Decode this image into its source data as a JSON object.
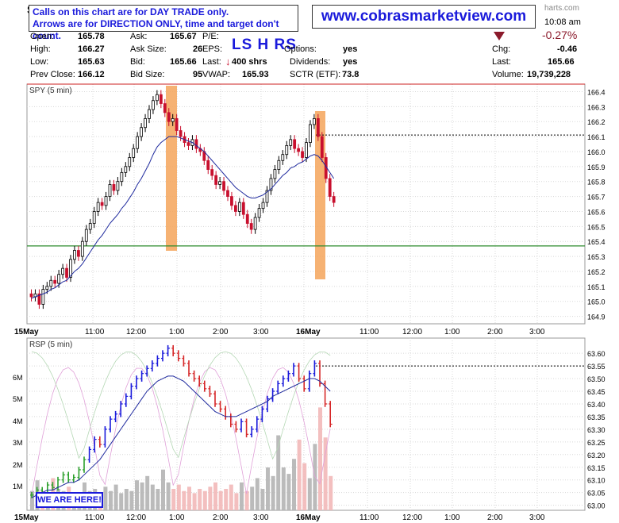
{
  "header": {
    "symbol_letter": "S",
    "notice_line1": "Calls on this chart are for DAY TRADE only.",
    "notice_line2": "Arrows are for DIRECTION ONLY, time and target don't count.",
    "website": "www.cobrasmarketview.com",
    "brand_fragment": "harts.com",
    "time": "10:08 am",
    "change_pct": "-0.27%",
    "lshrs": "LS H RS",
    "row1": {
      "open_label": "Open:",
      "open": "165.78",
      "ask_label": "Ask:",
      "ask": "165.67",
      "pe_label": "P/E:",
      "pe": ""
    },
    "row2": {
      "high_label": "High:",
      "high": "166.27",
      "asksize_label": "Ask Size:",
      "asksize": "26",
      "eps_label": "EPS:",
      "options_label": "Options:",
      "options": "yes",
      "chg_label": "Chg:",
      "chg": "-0.46"
    },
    "row3": {
      "low_label": "Low:",
      "low": "165.63",
      "bid_label": "Bid:",
      "bid": "165.66",
      "last_label": "Last:",
      "last_size": "400 shrs",
      "dividends_label": "Dividends:",
      "dividends": "yes",
      "last2_label": "Last:",
      "last2": "165.66"
    },
    "row4": {
      "prev_label": "Prev Close:",
      "prev": "166.12",
      "bidsize_label": "Bid Size:",
      "bidsize": "95",
      "vwap_label": "VWAP:",
      "vwap": "165.93",
      "sctr_label": "SCTR (ETF):",
      "sctr": "73.8",
      "volume_label": "Volume:",
      "volume": "19,739,228"
    }
  },
  "overlay": {
    "we_are_here": "WE ARE HERE!"
  },
  "colors": {
    "up": "#000000",
    "down": "#c8102e",
    "ma": "#1f2a9e",
    "highlight": "#f5a55a",
    "red_line": "#cc2222",
    "green_line": "#2e8b2e",
    "rsp_up": "#2ca02c",
    "rsp_down": "#d62728",
    "rsp_blue": "#1a1adb"
  },
  "chart_data": [
    {
      "type": "candlestick",
      "title": "SPY (5 min)",
      "ylim": [
        164.85,
        166.45
      ],
      "yticks": [
        "166.4",
        "166.3",
        "166.2",
        "166.1",
        "166.0",
        "165.9",
        "165.8",
        "165.7",
        "165.6",
        "165.5",
        "165.4",
        "165.3",
        "165.2",
        "165.1",
        "165.0",
        "164.9"
      ],
      "xticks": [
        "15May",
        "11:00",
        "12:00",
        "1:00",
        "2:00",
        "3:00",
        "16May",
        "11:00",
        "12:00",
        "1:00",
        "2:00",
        "3:00"
      ],
      "reference_lines": {
        "resistance": 166.45,
        "support": 165.37,
        "dashed": 166.11
      },
      "close": [
        165.03,
        165.05,
        164.98,
        165.08,
        165.1,
        165.14,
        165.12,
        165.18,
        165.22,
        165.16,
        165.28,
        165.34,
        165.3,
        165.4,
        165.48,
        165.52,
        165.6,
        165.66,
        165.64,
        165.7,
        165.78,
        165.74,
        165.8,
        165.86,
        165.9,
        165.96,
        166.02,
        166.1,
        166.16,
        166.22,
        166.28,
        166.34,
        166.38,
        166.32,
        166.26,
        166.2,
        166.22,
        166.14,
        166.1,
        166.06,
        166.04,
        166.08,
        166.02,
        166.0,
        165.94,
        165.88,
        165.84,
        165.78,
        165.8,
        165.74,
        165.7,
        165.64,
        165.6,
        165.66,
        165.58,
        165.52,
        165.48,
        165.56,
        165.62,
        165.66,
        165.74,
        165.82,
        165.88,
        165.94,
        165.98,
        166.04,
        166.08,
        166.02,
        166.0,
        165.96,
        166.06,
        166.18,
        166.22,
        166.1,
        165.96,
        165.82,
        165.7,
        165.66
      ],
      "series": [
        {
          "name": "Moving average",
          "values": [
            165.02,
            165.03,
            165.04,
            165.05,
            165.06,
            165.08,
            165.09,
            165.11,
            165.13,
            165.14,
            165.17,
            165.2,
            165.22,
            165.25,
            165.29,
            165.33,
            165.37,
            165.41,
            165.44,
            165.48,
            165.52,
            165.55,
            165.58,
            165.62,
            165.65,
            165.69,
            165.73,
            165.78,
            165.82,
            165.87,
            165.92,
            165.98,
            166.03,
            166.06,
            166.08,
            166.1,
            166.1,
            166.1,
            166.09,
            166.08,
            166.07,
            166.06,
            166.04,
            166.02,
            166.0,
            165.97,
            165.94,
            165.91,
            165.88,
            165.85,
            165.82,
            165.79,
            165.76,
            165.74,
            165.72,
            165.7,
            165.69,
            165.69,
            165.7,
            165.71,
            165.73,
            165.75,
            165.78,
            165.81,
            165.84,
            165.86,
            165.89,
            165.9,
            165.92,
            165.93,
            165.95,
            165.97,
            165.98,
            165.97,
            165.94,
            165.9,
            165.86,
            165.82
          ]
        }
      ]
    },
    {
      "type": "bar",
      "title": "RSP (5 min)",
      "ylim": [
        62.98,
        63.66
      ],
      "yticks": [
        "63.60",
        "63.55",
        "63.50",
        "63.45",
        "63.40",
        "63.35",
        "63.30",
        "63.25",
        "63.20",
        "63.15",
        "63.10",
        "63.05",
        "63.00"
      ],
      "volume_ticks": [
        "6M",
        "5M",
        "4M",
        "3M",
        "2M",
        "1M"
      ],
      "xticks": [
        "15May",
        "11:00",
        "12:00",
        "1:00",
        "2:00",
        "3:00",
        "16May",
        "11:00",
        "12:00",
        "1:00",
        "2:00",
        "3:00"
      ],
      "reference_lines": {
        "dashed": 63.55
      },
      "close": [
        63.04,
        63.06,
        63.05,
        63.08,
        63.07,
        63.1,
        63.12,
        63.1,
        63.11,
        63.14,
        63.18,
        63.22,
        63.26,
        63.24,
        63.3,
        63.34,
        63.36,
        63.4,
        63.43,
        63.47,
        63.5,
        63.52,
        63.54,
        63.56,
        63.58,
        63.6,
        63.62,
        63.6,
        63.58,
        63.56,
        63.52,
        63.5,
        63.48,
        63.46,
        63.44,
        63.4,
        63.38,
        63.35,
        63.32,
        63.3,
        63.33,
        63.28,
        63.3,
        63.34,
        63.38,
        63.42,
        63.45,
        63.48,
        63.5,
        63.52,
        63.55,
        63.5,
        63.46,
        63.52,
        63.56,
        63.48,
        63.4,
        63.32
      ],
      "series": [
        {
          "name": "Moving average",
          "values": [
            63.03,
            63.04,
            63.05,
            63.06,
            63.06,
            63.07,
            63.08,
            63.09,
            63.09,
            63.1,
            63.12,
            63.14,
            63.16,
            63.18,
            63.21,
            63.24,
            63.27,
            63.3,
            63.33,
            63.36,
            63.39,
            63.42,
            63.45,
            63.47,
            63.49,
            63.5,
            63.51,
            63.51,
            63.5,
            63.49,
            63.47,
            63.45,
            63.43,
            63.41,
            63.39,
            63.37,
            63.36,
            63.35,
            63.35,
            63.35,
            63.36,
            63.37,
            63.38,
            63.39,
            63.4,
            63.41,
            63.43,
            63.44,
            63.45,
            63.46,
            63.47,
            63.48,
            63.49,
            63.5,
            63.5,
            63.49,
            63.47,
            63.45
          ]
        },
        {
          "name": "Volume",
          "values": [
            0.9,
            1.4,
            0.9,
            0.7,
            1.5,
            1.0,
            0.9,
            1.1,
            0.8,
            0.7,
            1.3,
            0.9,
            1.0,
            0.8,
            1.1,
            0.9,
            1.2,
            0.8,
            1.0,
            0.9,
            1.4,
            1.3,
            1.6,
            1.2,
            1.0,
            1.9,
            1.3,
            1.0,
            1.2,
            0.9,
            1.1,
            0.8,
            1.0,
            0.9,
            1.1,
            1.3,
            0.9,
            1.0,
            1.2,
            0.8,
            1.3,
            0.9,
            1.1,
            1.5,
            1.0,
            2.0,
            1.6,
            3.5,
            2.0,
            1.7,
            2.4,
            3.3,
            2.2,
            1.5,
            3.1,
            4.8,
            3.4,
            1.6
          ]
        }
      ]
    }
  ]
}
